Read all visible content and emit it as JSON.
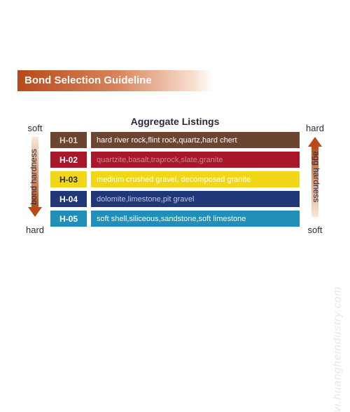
{
  "title": "Bond Selection Guideline",
  "subtitle": "Aggregate Listings",
  "rows": [
    {
      "code": "H-01",
      "desc": "hard river rock,flint rock,quartz,hard chert",
      "code_bg": "#6b4530",
      "code_fg": "#e0d4c8",
      "desc_bg": "#6b4530",
      "desc_fg": "#ffffff"
    },
    {
      "code": "H-02",
      "desc": "quartzite,basalt,traprock,slate,granite",
      "code_bg": "#a81828",
      "code_fg": "#ffffff",
      "desc_bg": "#a81828",
      "desc_fg": "#c88890"
    },
    {
      "code": "H-03",
      "desc": "medium crushed gravel, decomposed granite",
      "code_bg": "#f0d818",
      "code_fg": "#2a2a3a",
      "desc_bg": "#f0d818",
      "desc_fg": "#ffffff"
    },
    {
      "code": "H-04",
      "desc": "dolomite,limestone,pit gravel",
      "code_bg": "#203878",
      "code_fg": "#ffffff",
      "desc_bg": "#203878",
      "desc_fg": "#c0c8e0"
    },
    {
      "code": "H-05",
      "desc": "soft shell,siliceous,sandstone,soft limestone",
      "code_bg": "#2090b8",
      "code_fg": "#ffffff",
      "desc_bg": "#2090b8",
      "desc_fg": "#ffffff"
    }
  ],
  "left_scale": {
    "top": "soft",
    "bottom": "hard",
    "label": "bond hardness",
    "direction": "down"
  },
  "right_scale": {
    "top": "hard",
    "bottom": "soft",
    "label": "agg hardness",
    "direction": "up"
  },
  "watermark": "vi.huangheindustry.com"
}
